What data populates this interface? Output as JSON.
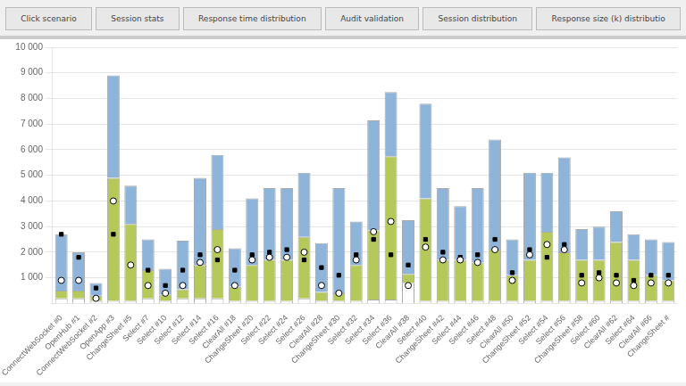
{
  "chart_data": {
    "type": "bar",
    "stacked": true,
    "grid": true,
    "annotations": [
      "Click scenario",
      "Session stats",
      "Response time distribution",
      "Audit validation",
      "Session distribution",
      "Response size (k) distributio"
    ],
    "categories": [
      "ConnectWebSocket #0",
      "OpenHub #1",
      "ConnectWebSocket #2",
      "OpenApp #3",
      "ChangeSheet #5",
      "Select #7",
      "Select #10",
      "Select #12",
      "Select #14",
      "Select #16",
      "ClearAll #18",
      "ChangeSheet #20",
      "Select #22",
      "Select #24",
      "Select #26",
      "ClearAll #28",
      "ChangeSheet #30",
      "Select #32",
      "Select #34",
      "Select #36",
      "ClearAll #38",
      "Select #40",
      "ChangeSheet #42",
      "Select #44",
      "Select #46",
      "Select #48",
      "ClearAll #50",
      "ChangeSheet #52",
      "Select #54",
      "Select #56",
      "ChangeSheet #58",
      "Select #60",
      "ClearAll #62",
      "Select #64",
      "ClearAll #66",
      "ChangeSheet #"
    ],
    "series": [
      {
        "type": "bar",
        "color": "#ffffff",
        "values": [
          200,
          200,
          100,
          100,
          100,
          200,
          100,
          200,
          200,
          200,
          100,
          100,
          100,
          100,
          200,
          100,
          100,
          100,
          150,
          150,
          800,
          100,
          100,
          100,
          100,
          100,
          100,
          100,
          100,
          100,
          100,
          100,
          100,
          100,
          100,
          100
        ]
      },
      {
        "type": "bar",
        "color": "#b5c95a",
        "values": [
          300,
          300,
          200,
          4800,
          3000,
          1100,
          250,
          350,
          1300,
          2700,
          550,
          1400,
          1600,
          1600,
          2400,
          350,
          300,
          1400,
          2700,
          5600,
          350,
          4000,
          1600,
          1600,
          1500,
          2000,
          1000,
          1600,
          2700,
          1900,
          1600,
          1600,
          2300,
          1600,
          1000,
          800
        ]
      },
      {
        "type": "bar",
        "color": "#8fb4d9",
        "values": [
          2200,
          1500,
          500,
          4000,
          1500,
          1200,
          1000,
          1900,
          3400,
          2900,
          1500,
          2600,
          2800,
          2800,
          2500,
          1900,
          4100,
          1700,
          4300,
          2500,
          2100,
          3700,
          2800,
          2100,
          2900,
          4300,
          1400,
          3400,
          2300,
          3700,
          1200,
          1300,
          1200,
          1000,
          1400,
          1500
        ]
      },
      {
        "type": "scatter",
        "marker": "open_circle",
        "color": "#000000",
        "values": [
          900,
          900,
          200,
          4000,
          1500,
          700,
          400,
          700,
          1600,
          2100,
          700,
          1700,
          1800,
          1800,
          2000,
          700,
          400,
          1700,
          2800,
          3200,
          700,
          2200,
          1700,
          1700,
          1600,
          2100,
          900,
          1900,
          2300,
          2100,
          800,
          1000,
          800,
          700,
          800,
          800
        ]
      },
      {
        "type": "scatter",
        "marker": "square",
        "color": "#000000",
        "values": [
          2700,
          1800,
          600,
          2700,
          1500,
          1300,
          700,
          1300,
          1900,
          1700,
          1300,
          1900,
          2000,
          2100,
          1700,
          1400,
          1100,
          1900,
          2500,
          1900,
          1500,
          2500,
          2000,
          1800,
          1900,
          2500,
          1200,
          2100,
          1800,
          2300,
          1100,
          1200,
          1100,
          900,
          1100,
          1100
        ]
      }
    ],
    "ylim": [
      0,
      10000
    ],
    "yticks": [
      {
        "value": 1000,
        "label": "1 000"
      },
      {
        "value": 2000,
        "label": "2 000"
      },
      {
        "value": 3000,
        "label": "3 000"
      },
      {
        "value": 4000,
        "label": "4 000"
      },
      {
        "value": 5000,
        "label": "5 000"
      },
      {
        "value": 6000,
        "label": "6 000"
      },
      {
        "value": 7000,
        "label": "7 000"
      },
      {
        "value": 8000,
        "label": "8 000"
      },
      {
        "value": 9000,
        "label": "9 000"
      },
      {
        "value": 10000,
        "label": "10 000"
      }
    ]
  }
}
